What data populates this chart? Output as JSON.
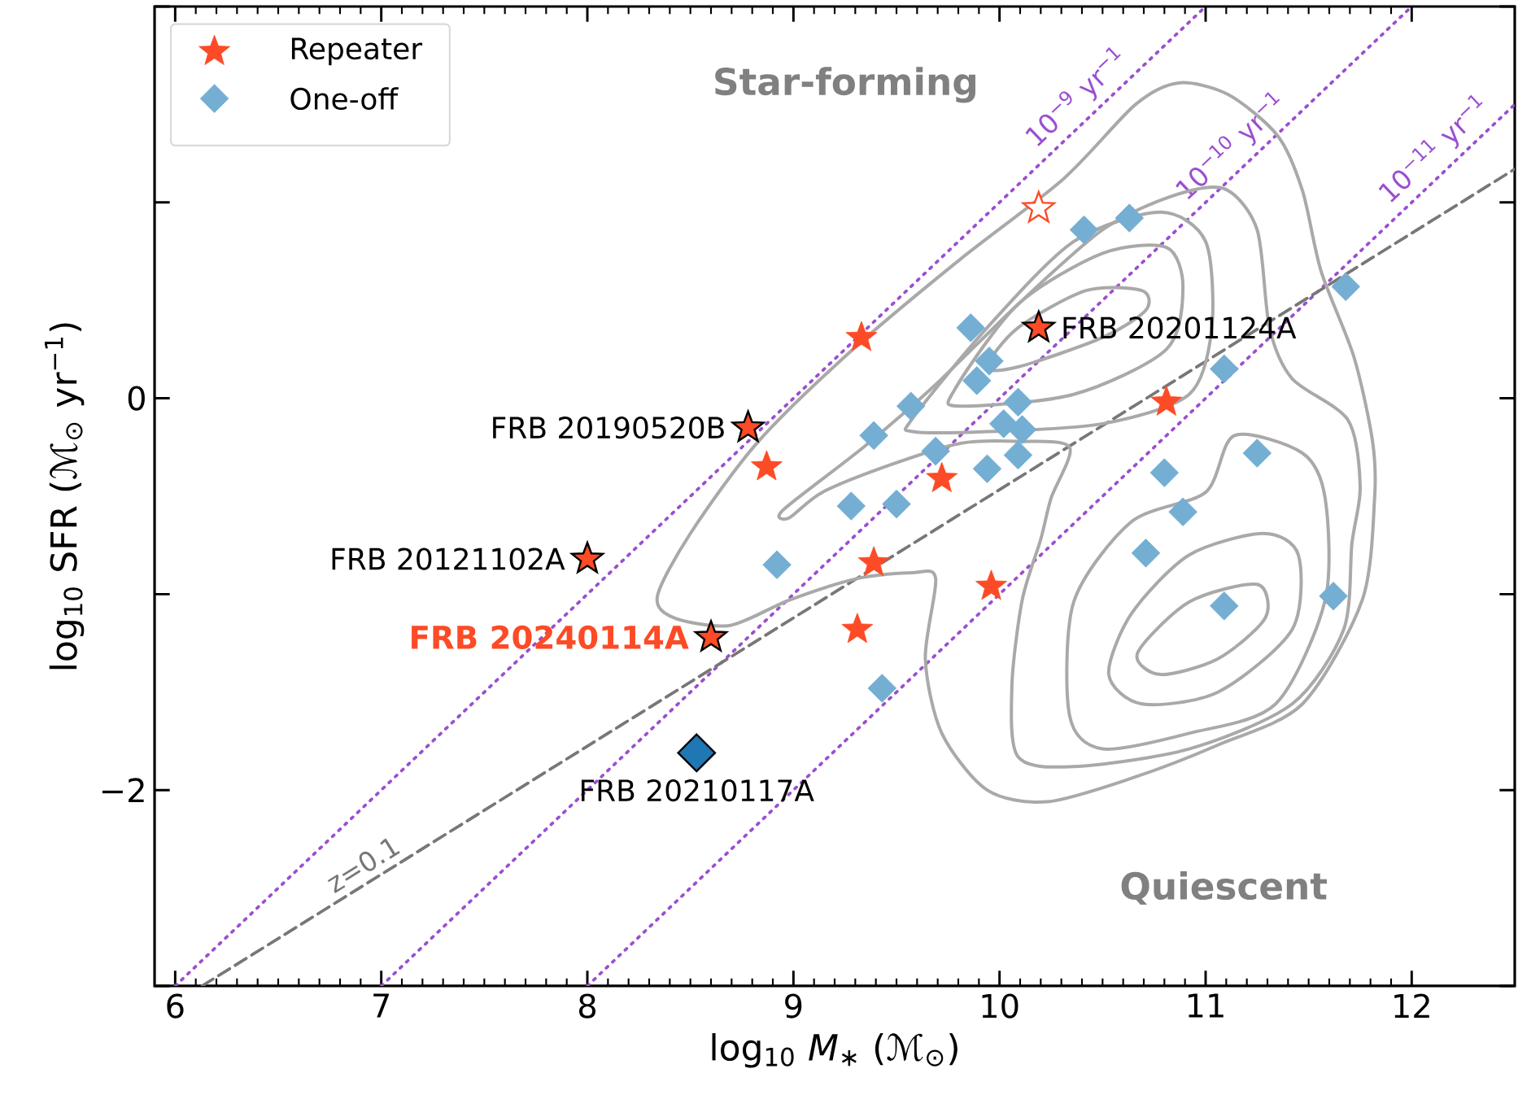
{
  "chart_data": {
    "type": "scatter",
    "xlabel": "log$_{10}$ *M*$_{∗}$ (ℳ$_{⊙}$)",
    "ylabel": "log$_{10}$ SFR (ℳ$_{⊙}$ yr$^{−1}$)",
    "xlim": [
      5.9,
      12.5
    ],
    "ylim": [
      -3,
      2
    ],
    "xticks": [
      6,
      7,
      8,
      9,
      10,
      11,
      12
    ],
    "yticks": [
      {
        "value": -3,
        "label": null
      },
      {
        "value": -2,
        "label": "−2"
      },
      {
        "value": -1,
        "label": null
      },
      0,
      {
        "value": 1,
        "label": null
      },
      {
        "value": 2,
        "label": null
      }
    ],
    "legend": "top left",
    "series": [
      {
        "name": "Repeater",
        "color": "#fc4b26",
        "marker": "star",
        "x": [
          9.33,
          8.87,
          9.72,
          9.39,
          9.31,
          9.96,
          10.81
        ],
        "values": [
          0.31,
          -0.35,
          -0.41,
          -0.84,
          -1.18,
          -0.96,
          -0.02
        ]
      },
      {
        "name": "One-off",
        "color": "#74aed3",
        "marker": "diamond",
        "x": [
          10.41,
          10.63,
          9.86,
          9.95,
          9.89,
          9.57,
          10.09,
          9.39,
          10.02,
          10.11,
          9.69,
          10.09,
          9.94,
          9.28,
          9.5,
          8.92,
          11.09,
          11.68,
          11.25,
          10.8,
          10.89,
          10.71,
          11.09,
          11.62,
          9.43
        ],
        "values": [
          0.86,
          0.92,
          0.36,
          0.19,
          0.09,
          -0.04,
          -0.02,
          -0.19,
          -0.13,
          -0.16,
          -0.27,
          -0.29,
          -0.36,
          -0.55,
          -0.54,
          -0.85,
          0.15,
          0.57,
          -0.28,
          -0.38,
          -0.58,
          -0.79,
          -1.06,
          -1.01,
          -1.48
        ]
      },
      {
        "color": "#fc4b26",
        "marker": "star",
        "x": [
          8.78,
          8.0,
          8.6,
          10.19
        ],
        "values": [
          -0.15,
          -0.82,
          -1.22,
          0.36
        ]
      },
      {
        "color": "#fc4b26",
        "marker": "star",
        "x": [
          10.19
        ],
        "values": [
          0.97
        ]
      },
      {
        "color": "#1f77b4",
        "marker": "diamond",
        "x": [
          8.53
        ],
        "values": [
          -1.81
        ]
      },
      {
        "type": "line",
        "name": "10$^{−9}$ yr$^{−1}$",
        "color": "#9a4fd0",
        "line_style": "dotted",
        "x": [
          6.0,
          11.0
        ],
        "values": [
          -3,
          2
        ]
      },
      {
        "type": "line",
        "name": "10$^{−10}$ yr$^{−1}$",
        "color": "#9a4fd0",
        "line_style": "dotted",
        "x": [
          7.0,
          12.0
        ],
        "values": [
          -3,
          2
        ]
      },
      {
        "type": "line",
        "name": "10$^{−11}$ yr$^{−1}$",
        "color": "#9a4fd0",
        "line_style": "dotted",
        "x": [
          8.0,
          12.5
        ],
        "values": [
          -3,
          1.5
        ]
      },
      {
        "type": "line",
        "name": "z=0.1",
        "color": "#777777",
        "line_style": "dashed",
        "x": [
          6.13,
          12.5
        ],
        "values": [
          -3,
          1.17
        ]
      }
    ],
    "annotations": [
      "Star-forming",
      "Quiescent",
      {
        "text": "FRB 20190520B",
        "x": 8.78,
        "y": -0.15
      },
      {
        "text": "FRB 20121102A",
        "x": 8.0,
        "y": -0.82
      },
      {
        "text": "FRB 20240114A",
        "x": 8.6,
        "y": -1.22
      },
      {
        "text": "FRB 20201124A",
        "x": 10.19,
        "y": 0.36
      },
      {
        "text": "FRB 20210117A",
        "x": 8.53,
        "y": -1.81
      }
    ]
  }
}
